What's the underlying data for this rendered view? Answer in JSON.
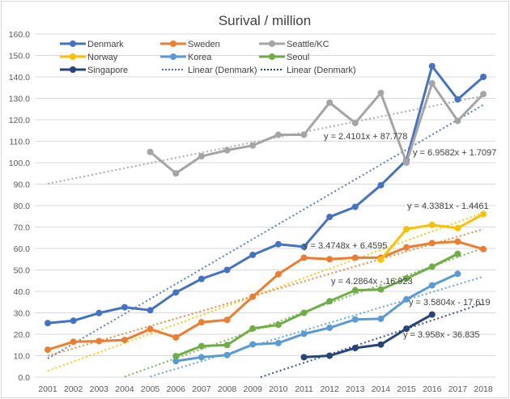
{
  "chart_data": {
    "type": "line",
    "title": "Surival / million",
    "xlabel": "",
    "ylabel": "",
    "ylim": [
      0,
      160
    ],
    "ytick_step": 10,
    "ytick_labels": [
      "0.0",
      "10.0",
      "20.0",
      "30.0",
      "40.0",
      "50.0",
      "60.0",
      "70.0",
      "80.0",
      "90.0",
      "100.0",
      "110.0",
      "120.0",
      "130.0",
      "140.0",
      "150.0",
      "160.0"
    ],
    "grid": true,
    "legend_position": "top",
    "categories": [
      "2001",
      "2002",
      "2003",
      "2004",
      "2005",
      "2006",
      "2007",
      "2008",
      "2009",
      "2010",
      "2011",
      "2012",
      "2013",
      "2014",
      "2015",
      "2016",
      "2017",
      "2018"
    ],
    "series": [
      {
        "name": "Denmark",
        "color": "#4472c4",
        "values": [
          25.2,
          26.3,
          29.9,
          32.6,
          31.2,
          39.5,
          45.8,
          50.0,
          57.0,
          62.0,
          60.8,
          74.7,
          79.4,
          89.5,
          101.2,
          145.0,
          129.5,
          140.0
        ]
      },
      {
        "name": "Sweden",
        "color": "#ed7d31",
        "values": [
          12.8,
          16.5,
          16.8,
          17.3,
          22.4,
          18.5,
          25.6,
          26.7,
          37.5,
          48.0,
          55.7,
          55.0,
          55.7,
          55.7,
          60.5,
          62.5,
          63.2,
          59.7
        ]
      },
      {
        "name": "Seattle/KC",
        "color": "#a5a5a5",
        "values": [
          null,
          null,
          null,
          null,
          105.0,
          95.0,
          103.0,
          105.8,
          108.0,
          113.0,
          113.0,
          128.0,
          118.5,
          132.5,
          100.0,
          137.0,
          119.5,
          132.0
        ]
      },
      {
        "name": "Norway",
        "color": "#ffc000",
        "values": [
          null,
          null,
          null,
          null,
          null,
          null,
          null,
          null,
          null,
          null,
          null,
          null,
          null,
          54.8,
          69.0,
          71.0,
          69.5,
          76.0
        ]
      },
      {
        "name": "Korea",
        "color": "#5b9bd5",
        "values": [
          null,
          null,
          null,
          null,
          null,
          7.5,
          9.3,
          10.3,
          15.3,
          15.9,
          20.2,
          23.0,
          26.9,
          27.2,
          36.3,
          42.8,
          48.2,
          null
        ]
      },
      {
        "name": "Seoul",
        "color": "#70ad47",
        "values": [
          null,
          null,
          null,
          null,
          null,
          9.8,
          14.5,
          15.0,
          22.7,
          24.4,
          30.0,
          35.4,
          40.5,
          40.9,
          46.0,
          51.5,
          57.5,
          null
        ]
      },
      {
        "name": "Singapore",
        "color": "#264478",
        "values": [
          null,
          null,
          null,
          null,
          null,
          null,
          null,
          null,
          null,
          null,
          9.3,
          10.0,
          13.6,
          15.2,
          22.6,
          29.2,
          null,
          null
        ]
      }
    ],
    "trendlines": [
      {
        "series": "Seattle/KC",
        "color": "#a5a5a5",
        "slope": 2.4101,
        "intercept": 87.778,
        "x_from": 1,
        "x_to": 18,
        "label": "y = 2.4101x + 87.778"
      },
      {
        "series": "Denmark",
        "color": "#4472c4",
        "slope": 6.9582,
        "intercept": 1.7097,
        "x_from": 1,
        "x_to": 18,
        "label": "y = 6.9582x + 1.7097"
      },
      {
        "series": "Norway",
        "color": "#ffc000",
        "slope": 4.3381,
        "intercept": -1.4461,
        "x_from": 1,
        "x_to": 18,
        "label": "y = 4.3381x - 1.4461"
      },
      {
        "series": "Sweden",
        "color": "#ed7d31",
        "slope": 3.4748,
        "intercept": 6.4595,
        "x_from": 1,
        "x_to": 18,
        "label": "y = 3.4748x + 6.4595"
      },
      {
        "series": "Seoul",
        "color": "#70ad47",
        "slope": 4.2864,
        "intercept": -16.923,
        "x_from": 4,
        "x_to": 18,
        "label": "y = 4.2864x - 16.923"
      },
      {
        "series": "Korea",
        "color": "#5b9bd5",
        "slope": 3.5804,
        "intercept": -17.619,
        "x_from": 5,
        "x_to": 18,
        "label": "y = 3.5804x - 17.619"
      },
      {
        "series": "Singapore",
        "color": "#264478",
        "slope": 3.958,
        "intercept": -36.835,
        "x_from": 9,
        "x_to": 18,
        "label": "y = 3.958x - 36.835"
      },
      {
        "series": "Singapore-denmark-style",
        "color": "#264478",
        "slope": 4.0,
        "intercept": 4.0,
        "x_from": 1,
        "x_to": 1,
        "label": ""
      }
    ],
    "legend": [
      {
        "label": "Denmark",
        "color": "#4472c4",
        "style": "line-marker"
      },
      {
        "label": "Sweden",
        "color": "#ed7d31",
        "style": "line-marker"
      },
      {
        "label": "Seattle/KC",
        "color": "#a5a5a5",
        "style": "line-marker"
      },
      {
        "label": "Norway",
        "color": "#ffc000",
        "style": "line-marker"
      },
      {
        "label": "Korea",
        "color": "#5b9bd5",
        "style": "line-marker"
      },
      {
        "label": "Seoul",
        "color": "#70ad47",
        "style": "line-marker"
      },
      {
        "label": "Singapore",
        "color": "#264478",
        "style": "line-marker"
      },
      {
        "label": "Linear (Denmark)",
        "color": "#4472c4",
        "style": "dotted"
      },
      {
        "label": "Linear (Denmark)",
        "color": "#264478",
        "style": "dotted"
      }
    ]
  }
}
